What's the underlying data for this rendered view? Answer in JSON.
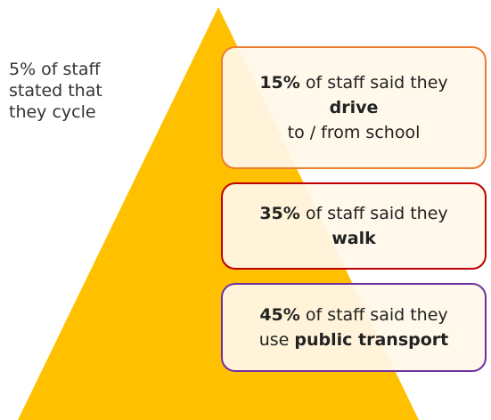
{
  "note": {
    "lines": [
      "5% of staff",
      "stated that",
      "they cycle"
    ]
  },
  "boxes": [
    {
      "color": "#ed7d31",
      "lines": [
        [
          {
            "text": "15%",
            "bold": true
          },
          {
            "text": " of staff said they",
            "bold": false
          }
        ],
        [
          {
            "text": "drive",
            "bold": true
          }
        ],
        [
          {
            "text": "to / from school",
            "bold": false
          }
        ]
      ]
    },
    {
      "color": "#c00000",
      "lines": [
        [
          {
            "text": "35%",
            "bold": true
          },
          {
            "text": " of staff said they",
            "bold": false
          }
        ],
        [
          {
            "text": "walk",
            "bold": true
          }
        ]
      ]
    },
    {
      "color": "#7030a0",
      "lines": [
        [
          {
            "text": "45%",
            "bold": true
          },
          {
            "text": " of staff said they",
            "bold": false
          }
        ],
        [
          {
            "text": "use ",
            "bold": false
          },
          {
            "text": "public transport",
            "bold": true
          }
        ]
      ]
    }
  ]
}
